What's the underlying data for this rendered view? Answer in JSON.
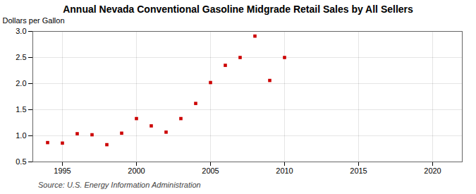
{
  "chart_data": {
    "type": "scatter",
    "title": "Annual Nevada Conventional Gasoline Midgrade Retail Sales by All Sellers",
    "ylabel": "Dollars per Gallon",
    "annotation": "Source: U.S. Energy Information Administration",
    "x": [
      1994,
      1995,
      1996,
      1997,
      1998,
      1999,
      2000,
      2001,
      2002,
      2003,
      2004,
      2005,
      2006,
      2007,
      2008,
      2009,
      2010
    ],
    "values": [
      0.87,
      0.86,
      1.04,
      1.02,
      0.83,
      1.05,
      1.33,
      1.19,
      1.07,
      1.33,
      1.62,
      2.02,
      2.35,
      2.5,
      2.91,
      2.06,
      2.5
    ],
    "color": "#cc0000",
    "marker": "square",
    "xlim": [
      1993,
      2022
    ],
    "ylim": [
      0.5,
      3.0
    ],
    "xticks": [
      1995,
      2000,
      2005,
      2010,
      2015,
      2020
    ],
    "yticks": [
      0.5,
      {
        "value": 1.0,
        "label": "1.0"
      },
      1.5,
      {
        "value": 2.0,
        "label": "2.0"
      },
      2.5,
      {
        "value": 3.0,
        "label": "3.0"
      }
    ],
    "grid": true
  }
}
